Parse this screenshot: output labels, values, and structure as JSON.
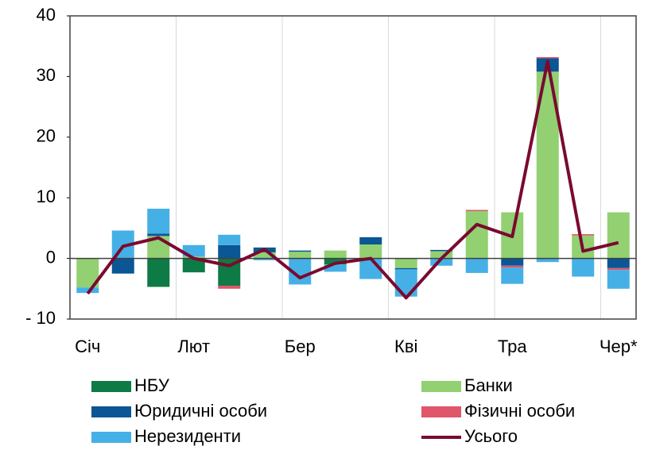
{
  "chart_data": {
    "type": "bar",
    "stacked": true,
    "categories": [
      "Січ",
      null,
      null,
      "Лют",
      null,
      null,
      "Бер",
      null,
      null,
      "Кві",
      null,
      null,
      "Тра",
      null,
      null,
      "Чер*"
    ],
    "series": [
      {
        "name": "НБУ",
        "color": "#0e7a45",
        "values": [
          0,
          0,
          -4.7,
          -2.3,
          -4.5,
          0,
          0,
          -1.0,
          0,
          0,
          0,
          0,
          0,
          0,
          0,
          0
        ]
      },
      {
        "name": "Банки",
        "color": "#92d072",
        "values": [
          -4.8,
          0,
          3.7,
          0.3,
          0,
          1.0,
          1.1,
          1.3,
          2.3,
          -1.6,
          1.2,
          7.8,
          7.6,
          30.8,
          3.8,
          7.6
        ]
      },
      {
        "name": "Юридичні особи",
        "color": "#0b5694",
        "values": [
          0,
          -2.5,
          0.4,
          0,
          2.2,
          0.8,
          0.2,
          0,
          1.2,
          -0.2,
          0.2,
          0,
          -1.2,
          2.2,
          0,
          -1.6
        ]
      },
      {
        "name": "Фізичні особи",
        "color": "#e0566a",
        "values": [
          0,
          0,
          0,
          0,
          -0.5,
          0,
          0,
          0,
          0,
          0,
          0,
          0.2,
          -0.3,
          0.2,
          0.2,
          -0.3
        ]
      },
      {
        "name": "Нерезиденти",
        "color": "#45b0e6",
        "values": [
          -0.9,
          4.6,
          4.1,
          1.9,
          1.7,
          -0.3,
          -4.3,
          -1.2,
          -3.4,
          -4.5,
          -1.2,
          -2.4,
          -2.7,
          -0.6,
          -3.0,
          -3.1
        ]
      }
    ],
    "line": {
      "name": "Усього",
      "color": "#7a0a30",
      "values": [
        -5.8,
        2.0,
        3.4,
        0,
        -1.2,
        1.5,
        -3.2,
        -0.8,
        0,
        -6.5,
        0,
        5.6,
        3.6,
        32.5,
        1.2,
        2.6
      ]
    },
    "ylim": [
      -10,
      40
    ],
    "yticks": [
      {
        "value": -10,
        "label": "- 10"
      },
      0,
      10,
      20,
      30,
      40
    ]
  }
}
